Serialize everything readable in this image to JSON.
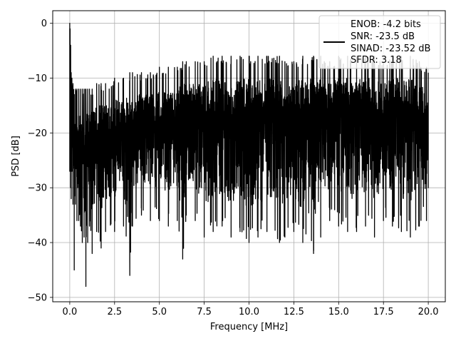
{
  "chart_data": {
    "type": "line",
    "title": "",
    "xlabel": "Frequency [MHz]",
    "ylabel": "PSD [dB]",
    "xlim": [
      -0.95,
      20.95
    ],
    "ylim": [
      -50.8,
      2.3
    ],
    "xticks": [
      0.0,
      2.5,
      5.0,
      7.5,
      10.0,
      12.5,
      15.0,
      17.5,
      20.0
    ],
    "xtick_labels": [
      "0.0",
      "2.5",
      "5.0",
      "7.5",
      "10.0",
      "12.5",
      "15.0",
      "17.5",
      "20.0"
    ],
    "yticks": [
      0,
      -10,
      -20,
      -30,
      -40,
      -50
    ],
    "ytick_labels": [
      "0",
      "−10",
      "−20",
      "−30",
      "−40",
      "−50"
    ],
    "grid": true,
    "legend_position": "top-right",
    "legend_lines": [
      "ENOB: -4.2 bits",
      "SNR: -23.5 dB",
      "SINAD: -23.52 dB",
      "SFDR: 3.18"
    ],
    "series": [
      {
        "color": "#000000",
        "x": [
          0.0,
          0.02,
          0.05,
          0.08,
          0.12,
          0.18,
          0.25,
          0.32,
          0.4,
          0.5,
          0.6,
          0.7,
          0.8,
          0.9,
          1.0,
          1.1,
          1.25,
          1.5,
          1.75,
          2.0,
          2.5,
          3.0,
          3.35,
          3.5,
          4.0,
          4.5,
          5.0,
          5.5,
          6.0,
          6.3,
          6.5,
          7.0,
          7.5,
          8.0,
          8.5,
          9.0,
          9.5,
          10.0,
          10.5,
          11.0,
          11.7,
          12.0,
          12.5,
          13.0,
          13.6,
          14.0,
          14.5,
          15.0,
          15.5,
          16.0,
          16.5,
          17.0,
          17.5,
          18.0,
          18.5,
          19.0,
          19.5,
          19.9,
          20.0
        ],
        "y_high": [
          0,
          -1,
          -4,
          -9,
          -10,
          -11,
          -13,
          -12,
          -12,
          -12,
          -12,
          -12,
          -12,
          -12,
          -12,
          -12,
          -12,
          -11,
          -11,
          -11,
          -10,
          -10,
          -9,
          -9,
          -9,
          -9,
          -8,
          -8,
          -8,
          -7,
          -7,
          -7,
          -7,
          -6,
          -6,
          -6,
          -6,
          -6,
          -6,
          -6,
          -6,
          -7,
          -7,
          -6,
          -6,
          -6,
          -7,
          -6,
          -6,
          -6,
          -6,
          -6,
          -7,
          -6,
          -6,
          -6,
          -7,
          -8,
          -9
        ],
        "y_low": [
          -27,
          -26,
          -30,
          -32,
          -27,
          -33,
          -45,
          -33,
          -36,
          -36,
          -37,
          -40,
          -39,
          -48,
          -40,
          -37,
          -42,
          -38,
          -41,
          -38,
          -38,
          -37,
          -46,
          -37,
          -35,
          -36,
          -36,
          -37,
          -36,
          -43,
          -35,
          -36,
          -39,
          -38,
          -37,
          -39,
          -38,
          -40,
          -39,
          -38,
          -40,
          -39,
          -38,
          -40,
          -42,
          -39,
          -36,
          -37,
          -38,
          -38,
          -37,
          -39,
          -36,
          -37,
          -38,
          -39,
          -37,
          -36,
          -30
        ]
      }
    ]
  }
}
